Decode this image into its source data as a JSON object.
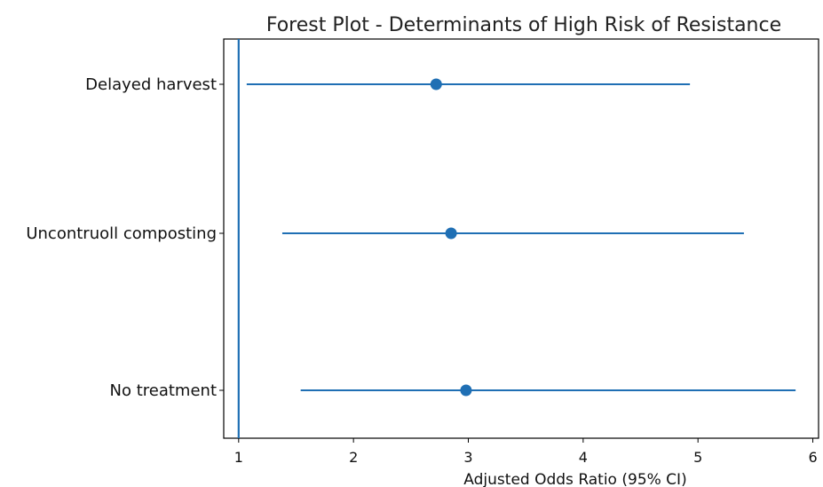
{
  "chart_data": {
    "type": "scatter",
    "title": "Forest Plot - Determinants of High Risk of Resistance",
    "xlabel": "Adjusted Odds Ratio (95% CI)",
    "ylabel": "",
    "xlim": [
      0.87,
      6.05
    ],
    "xticks": [
      "1",
      "2",
      "3",
      "4",
      "5",
      "6"
    ],
    "reference_line": 1,
    "categories": [
      "Delayed harvest",
      "Uncontruoll composting",
      "No treatment"
    ],
    "odds_ratio": [
      2.72,
      2.85,
      2.98
    ],
    "ci_lower": [
      1.07,
      1.38,
      1.54
    ],
    "ci_upper": [
      4.93,
      5.4,
      5.85
    ],
    "grid": false,
    "colors": {
      "series": "#1f6fb4",
      "axis": "#000000"
    }
  }
}
